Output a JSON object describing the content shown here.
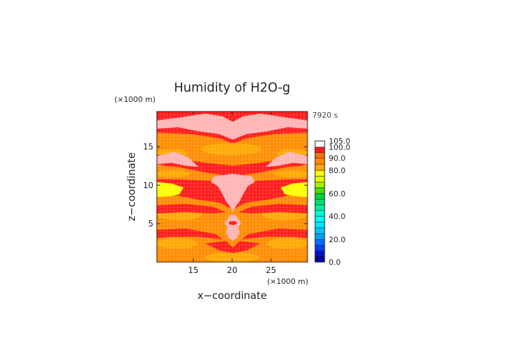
{
  "chart_data": {
    "type": "heatmap",
    "title": "Humidity of H2O-g",
    "xlabel": "x−coordinate",
    "ylabel": "z−coordinate",
    "x_unit": "(×1000 m)",
    "y_unit": "(×1000 m)",
    "time_label": "7920 s",
    "xlim": [
      10.3,
      29.7
    ],
    "ylim": [
      0,
      19.6
    ],
    "x_ticks": [
      15,
      20,
      25
    ],
    "y_ticks": [
      5,
      10,
      15
    ],
    "grid": true,
    "colorbar": {
      "ticks": [
        "0.0",
        "20.0",
        "40.0",
        "60.0",
        "80.0",
        "90.0",
        "100.0",
        "105.0"
      ],
      "bands": [
        {
          "from": 0,
          "to": 5,
          "color": "#0000a0"
        },
        {
          "from": 5,
          "to": 10,
          "color": "#0010d0"
        },
        {
          "from": 10,
          "to": 15,
          "color": "#0040f0"
        },
        {
          "from": 15,
          "to": 20,
          "color": "#0070ff"
        },
        {
          "from": 20,
          "to": 25,
          "color": "#00a0ff"
        },
        {
          "from": 25,
          "to": 30,
          "color": "#00c8ff"
        },
        {
          "from": 30,
          "to": 35,
          "color": "#00e8ff"
        },
        {
          "from": 35,
          "to": 40,
          "color": "#00ffff"
        },
        {
          "from": 40,
          "to": 45,
          "color": "#00ffd8"
        },
        {
          "from": 45,
          "to": 50,
          "color": "#00f0a0"
        },
        {
          "from": 50,
          "to": 55,
          "color": "#00e070"
        },
        {
          "from": 55,
          "to": 60,
          "color": "#00d040"
        },
        {
          "from": 60,
          "to": 65,
          "color": "#40e000"
        },
        {
          "from": 65,
          "to": 70,
          "color": "#a0f000"
        },
        {
          "from": 70,
          "to": 75,
          "color": "#e0ff00"
        },
        {
          "from": 75,
          "to": 80,
          "color": "#ffff00"
        },
        {
          "from": 80,
          "to": 85,
          "color": "#ffa800"
        },
        {
          "from": 85,
          "to": 90,
          "color": "#ff8c00"
        },
        {
          "from": 90,
          "to": 95,
          "color": "#ff7000"
        },
        {
          "from": 95,
          "to": 100,
          "color": "#ff1a1a"
        },
        {
          "from": 100,
          "to": 105,
          "color": "#ffffff"
        }
      ]
    },
    "field_colors": {
      "pink": "#ffb4b4",
      "red": "#ff1a1a",
      "orange_light": "#ffa800",
      "orange": "#ff8c00",
      "yellow": "#ffff00"
    }
  }
}
